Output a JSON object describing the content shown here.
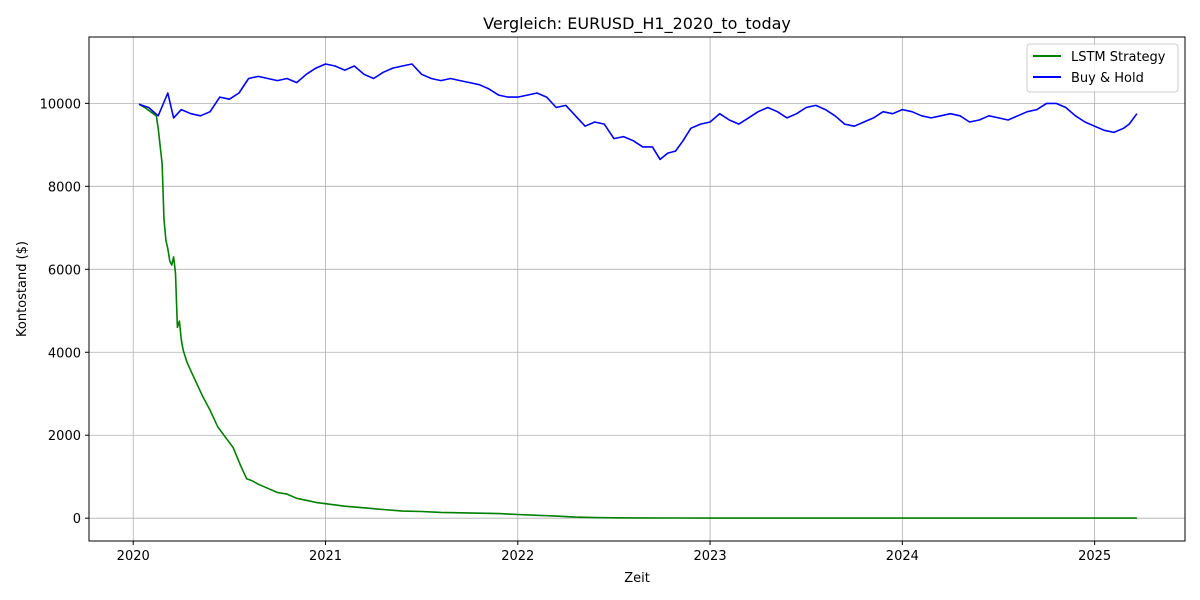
{
  "chart_data": {
    "type": "line",
    "title": "Vergleich: EURUSD_H1_2020_to_today",
    "xlabel": "Zeit",
    "ylabel": "Kontostand ($)",
    "xlim": [
      2019.77,
      2025.47
    ],
    "ylim": [
      -550,
      11600
    ],
    "x_ticks": [
      2020,
      2021,
      2022,
      2023,
      2024,
      2025
    ],
    "y_ticks": [
      0,
      2000,
      4000,
      6000,
      8000,
      10000
    ],
    "grid": true,
    "legend_position": "top-right",
    "series": [
      {
        "name": "LSTM Strategy",
        "color": "#008000",
        "x": [
          2020.03,
          2020.06,
          2020.09,
          2020.12,
          2020.13,
          2020.15,
          2020.16,
          2020.17,
          2020.18,
          2020.19,
          2020.2,
          2020.21,
          2020.22,
          2020.23,
          2020.24,
          2020.25,
          2020.26,
          2020.28,
          2020.3,
          2020.33,
          2020.36,
          2020.4,
          2020.44,
          2020.48,
          2020.52,
          2020.56,
          2020.59,
          2020.62,
          2020.65,
          2020.7,
          2020.75,
          2020.8,
          2020.85,
          2020.9,
          2020.95,
          2021.0,
          2021.1,
          2021.2,
          2021.3,
          2021.4,
          2021.5,
          2021.6,
          2021.7,
          2021.8,
          2021.9,
          2022.0,
          2022.1,
          2022.2,
          2022.3,
          2022.4,
          2022.5,
          2022.6,
          2022.8,
          2023.0,
          2023.5,
          2024.0,
          2024.5,
          2025.0,
          2025.22
        ],
        "y": [
          9980,
          9900,
          9800,
          9700,
          9400,
          8550,
          7200,
          6700,
          6500,
          6200,
          6100,
          6300,
          5900,
          4600,
          4750,
          4300,
          4050,
          3750,
          3550,
          3250,
          2950,
          2600,
          2200,
          1950,
          1700,
          1250,
          950,
          900,
          820,
          720,
          620,
          580,
          480,
          430,
          380,
          350,
          290,
          250,
          210,
          170,
          160,
          140,
          130,
          120,
          110,
          90,
          70,
          50,
          25,
          15,
          10,
          8,
          5,
          3,
          2,
          1,
          1,
          1,
          1
        ]
      },
      {
        "name": "Buy & Hold",
        "color": "#0000ff",
        "x": [
          2020.03,
          2020.08,
          2020.13,
          2020.18,
          2020.21,
          2020.25,
          2020.3,
          2020.35,
          2020.4,
          2020.45,
          2020.5,
          2020.55,
          2020.6,
          2020.65,
          2020.7,
          2020.75,
          2020.8,
          2020.85,
          2020.9,
          2020.95,
          2021.0,
          2021.05,
          2021.1,
          2021.15,
          2021.2,
          2021.25,
          2021.3,
          2021.35,
          2021.4,
          2021.45,
          2021.5,
          2021.55,
          2021.6,
          2021.65,
          2021.7,
          2021.75,
          2021.8,
          2021.85,
          2021.9,
          2021.95,
          2022.0,
          2022.05,
          2022.1,
          2022.15,
          2022.2,
          2022.25,
          2022.3,
          2022.35,
          2022.4,
          2022.45,
          2022.5,
          2022.55,
          2022.6,
          2022.65,
          2022.7,
          2022.74,
          2022.78,
          2022.82,
          2022.86,
          2022.9,
          2022.95,
          2023.0,
          2023.05,
          2023.1,
          2023.15,
          2023.2,
          2023.25,
          2023.3,
          2023.35,
          2023.4,
          2023.45,
          2023.5,
          2023.55,
          2023.6,
          2023.65,
          2023.7,
          2023.75,
          2023.8,
          2023.85,
          2023.9,
          2023.95,
          2024.0,
          2024.05,
          2024.1,
          2024.15,
          2024.2,
          2024.25,
          2024.3,
          2024.35,
          2024.4,
          2024.45,
          2024.5,
          2024.55,
          2024.6,
          2024.65,
          2024.7,
          2024.75,
          2024.8,
          2024.85,
          2024.9,
          2024.95,
          2025.0,
          2025.05,
          2025.1,
          2025.15,
          2025.18,
          2025.22
        ],
        "y": [
          9980,
          9900,
          9700,
          10250,
          9650,
          9850,
          9750,
          9700,
          9800,
          10150,
          10100,
          10250,
          10600,
          10650,
          10600,
          10550,
          10600,
          10500,
          10700,
          10850,
          10950,
          10900,
          10800,
          10900,
          10700,
          10600,
          10750,
          10850,
          10900,
          10950,
          10700,
          10600,
          10550,
          10600,
          10550,
          10500,
          10450,
          10350,
          10200,
          10150,
          10150,
          10200,
          10250,
          10150,
          9900,
          9950,
          9700,
          9450,
          9550,
          9500,
          9150,
          9200,
          9100,
          8950,
          8950,
          8650,
          8800,
          8850,
          9100,
          9400,
          9500,
          9550,
          9750,
          9600,
          9500,
          9650,
          9800,
          9900,
          9800,
          9650,
          9750,
          9900,
          9950,
          9850,
          9700,
          9500,
          9450,
          9550,
          9650,
          9800,
          9750,
          9850,
          9800,
          9700,
          9650,
          9700,
          9750,
          9700,
          9550,
          9600,
          9700,
          9650,
          9600,
          9700,
          9800,
          9850,
          10000,
          10000,
          9900,
          9700,
          9550,
          9450,
          9350,
          9300,
          9400,
          9500,
          9750
        ]
      }
    ]
  }
}
